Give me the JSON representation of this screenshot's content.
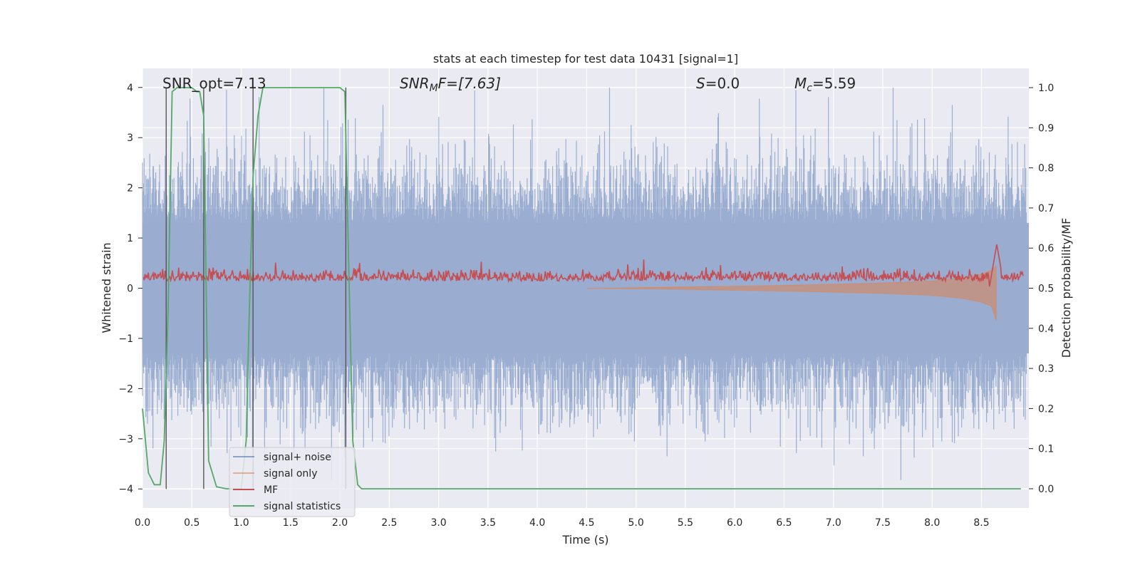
{
  "chart_data": {
    "type": "line",
    "title": "stats at each timestep for test data 10431 [signal=1]",
    "xlabel": "Time (s)",
    "ylabel_left": "Whitened strain",
    "ylabel_right": "Detection probability/MF",
    "xlim": [
      0.0,
      8.98
    ],
    "ylim_left": [
      -4.38,
      4.38
    ],
    "ylim_right": [
      -0.048,
      1.048
    ],
    "x_ticks": [
      "0.0",
      "0.5",
      "1.0",
      "1.5",
      "2.0",
      "2.5",
      "3.0",
      "3.5",
      "4.0",
      "4.5",
      "5.0",
      "5.5",
      "6.0",
      "6.5",
      "7.0",
      "7.5",
      "8.0",
      "8.5"
    ],
    "x_tick_values": [
      0.0,
      0.5,
      1.0,
      1.5,
      2.0,
      2.5,
      3.0,
      3.5,
      4.0,
      4.5,
      5.0,
      5.5,
      6.0,
      6.5,
      7.0,
      7.5,
      8.0,
      8.5
    ],
    "y_left_ticks": [
      "−4",
      "−3",
      "−2",
      "−1",
      "0",
      "1",
      "2",
      "3",
      "4"
    ],
    "y_left_tick_values": [
      -4,
      -3,
      -2,
      -1,
      0,
      1,
      2,
      3,
      4
    ],
    "y_right_ticks": [
      "0.0",
      "0.1",
      "0.2",
      "0.3",
      "0.4",
      "0.5",
      "0.6",
      "0.7",
      "0.8",
      "0.9",
      "1.0"
    ],
    "y_right_tick_values": [
      0.0,
      0.1,
      0.2,
      0.3,
      0.4,
      0.5,
      0.6,
      0.7,
      0.8,
      0.9,
      1.0
    ],
    "annotations": {
      "snr_opt": "SNR_opt=7.13",
      "snr_mf_label": "SNR",
      "snr_mf_sub": "M",
      "snr_mf_rest": "F=[7.63]",
      "s_label": "S",
      "s_value": "=0.0",
      "mc_label": "M",
      "mc_sub": "c",
      "mc_value": "=5.59"
    },
    "legend": [
      {
        "label": "signal+ noise",
        "color": "#4c72b0"
      },
      {
        "label": "signal only",
        "color": "#dd8452"
      },
      {
        "label": "MF",
        "color": "#c44e52"
      },
      {
        "label": "signal statistics",
        "color": "#55a868"
      }
    ],
    "vertical_markers_x": [
      0.24,
      0.62,
      1.12,
      2.06
    ],
    "series": [
      {
        "name": "signal statistics",
        "axis": "right",
        "x": [
          0.0,
          0.06,
          0.12,
          0.18,
          0.22,
          0.26,
          0.3,
          0.35,
          0.4,
          0.45,
          0.5,
          0.55,
          0.58,
          0.62,
          0.67,
          0.75,
          0.85,
          1.0,
          1.05,
          1.08,
          1.12,
          1.17,
          1.22,
          1.3,
          1.5,
          1.8,
          2.0,
          2.05,
          2.09,
          2.13,
          2.18,
          2.22,
          2.3,
          8.9
        ],
        "values": [
          0.2,
          0.04,
          0.01,
          0.01,
          0.12,
          0.45,
          0.99,
          1.0,
          1.0,
          1.0,
          1.0,
          0.99,
          0.99,
          0.93,
          0.07,
          0.005,
          0.0,
          0.0,
          0.12,
          0.42,
          0.78,
          0.93,
          1.0,
          1.0,
          1.0,
          1.0,
          1.0,
          0.99,
          0.55,
          0.12,
          0.01,
          0.0,
          0.0,
          0.0
        ]
      },
      {
        "name": "signal only (chirp envelope, right axis)",
        "axis": "right",
        "x": [
          4.5,
          5.5,
          6.0,
          6.5,
          7.0,
          7.5,
          8.0,
          8.3,
          8.5,
          8.6,
          8.65
        ],
        "upper": [
          0.5,
          0.503,
          0.505,
          0.507,
          0.51,
          0.513,
          0.518,
          0.525,
          0.535,
          0.545,
          0.555
        ],
        "lower": [
          0.5,
          0.497,
          0.495,
          0.493,
          0.49,
          0.487,
          0.482,
          0.475,
          0.465,
          0.455,
          0.42
        ]
      }
    ]
  }
}
